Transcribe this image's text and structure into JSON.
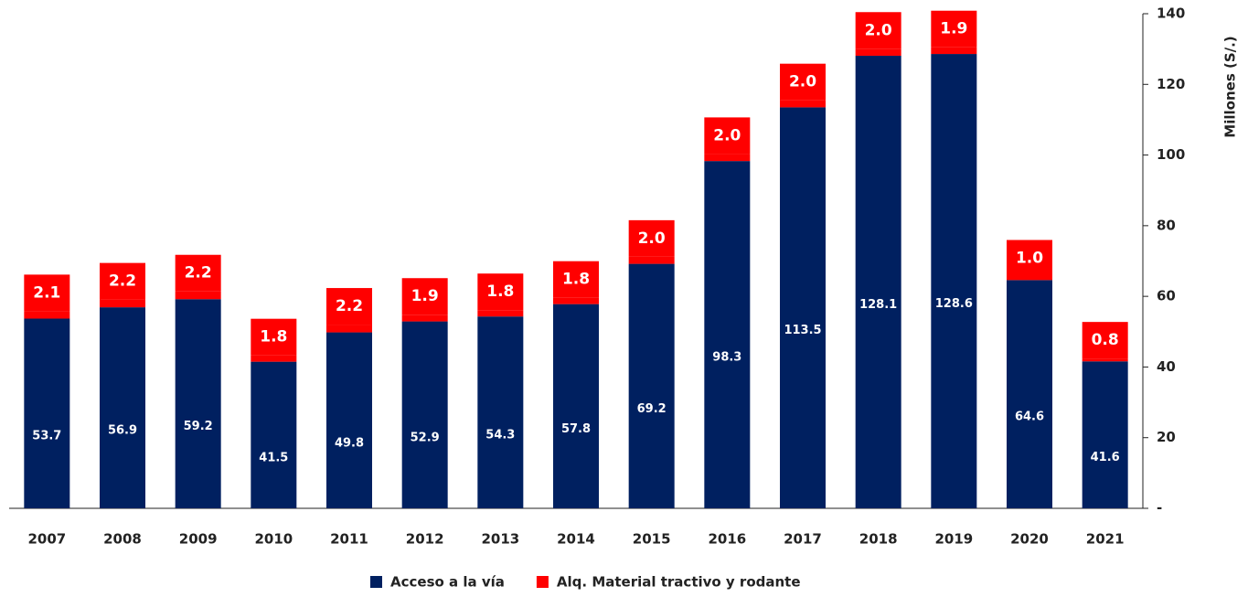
{
  "chart_data": {
    "type": "bar",
    "stacked": true,
    "y_axis_label": "Millones (S/.)",
    "categories": [
      "2007",
      "2008",
      "2009",
      "2010",
      "2011",
      "2012",
      "2013",
      "2014",
      "2015",
      "2016",
      "2017",
      "2018",
      "2019",
      "2020",
      "2021"
    ],
    "series": [
      {
        "name": "Acceso a la vía",
        "color": "#002060",
        "values": [
          53.7,
          56.9,
          59.2,
          41.5,
          49.8,
          52.9,
          54.3,
          57.8,
          69.2,
          98.3,
          113.5,
          128.1,
          128.6,
          64.6,
          41.6
        ]
      },
      {
        "name": "Alq. Material tractivo y  rodante",
        "color": "#ff0000",
        "values": [
          2.1,
          2.2,
          2.2,
          1.8,
          2.2,
          1.9,
          1.8,
          1.8,
          2.0,
          2.0,
          2.0,
          2.0,
          1.9,
          1.0,
          0.8
        ],
        "value_labels": [
          "2.1",
          "2.2",
          "2.2",
          "1.8",
          "2.2",
          "1.9",
          "1.8",
          "1.8",
          "2.0",
          "2.0",
          "2.0",
          "2.0",
          "1.9",
          "1.0",
          "0.8"
        ]
      }
    ],
    "ylim": [
      0,
      140
    ],
    "yticks": [
      {
        "value": 0,
        "label": "-"
      },
      20,
      40,
      60,
      80,
      100,
      120,
      140
    ],
    "y_axis_side": "right",
    "legend": "bottom"
  }
}
